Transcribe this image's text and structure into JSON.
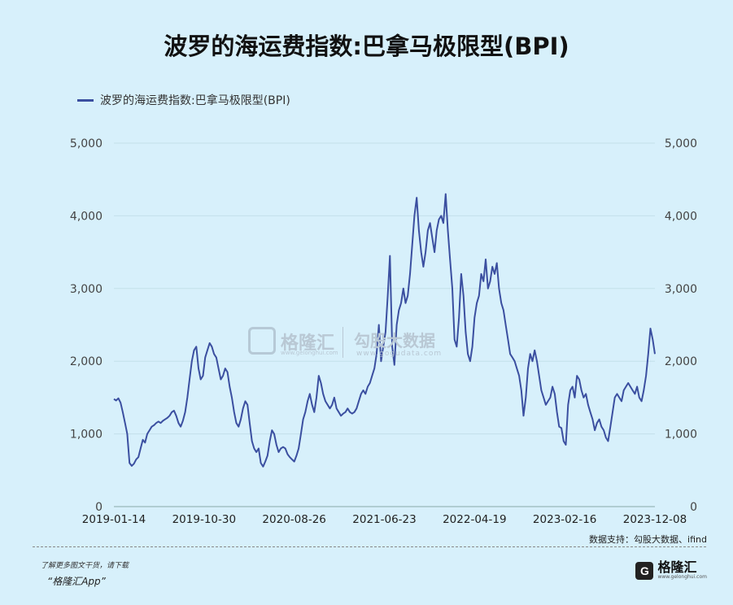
{
  "title": "波罗的海运费指数:巴拿马极限型(BPI)",
  "watermark": {
    "brand": "格隆汇",
    "brand_url": "www.gelonghui.com",
    "partner": "勾股大数据",
    "partner_url": "www.gogudata.com"
  },
  "footer": {
    "source": "数据支持：勾股大数据、ifind",
    "note": "了解更多图文干货，请下载",
    "app": "“格隆汇App”",
    "brand_logo": "G",
    "brand_name": "格隆汇",
    "brand_url": "www.gelonghui.com"
  },
  "colors": {
    "line": "#3b4fa0",
    "grid": "#c3dfea",
    "background": "#d7f0fb"
  },
  "chart_data": {
    "type": "line",
    "title": "波罗的海运费指数:巴拿马极限型(BPI)",
    "series": [
      {
        "name": "波罗的海运费指数:巴拿马极限型(BPI)",
        "values": [
          1480,
          1460,
          1490,
          1430,
          1300,
          1150,
          1000,
          600,
          560,
          590,
          650,
          680,
          800,
          920,
          880,
          1000,
          1050,
          1100,
          1120,
          1150,
          1170,
          1150,
          1180,
          1200,
          1220,
          1250,
          1300,
          1320,
          1250,
          1150,
          1100,
          1180,
          1300,
          1500,
          1750,
          2000,
          2150,
          2200,
          1900,
          1750,
          1800,
          2050,
          2150,
          2250,
          2200,
          2100,
          2050,
          1900,
          1750,
          1800,
          1900,
          1850,
          1650,
          1500,
          1300,
          1150,
          1100,
          1200,
          1350,
          1450,
          1400,
          1150,
          900,
          800,
          750,
          800,
          600,
          550,
          620,
          700,
          900,
          1050,
          1000,
          850,
          750,
          800,
          820,
          800,
          720,
          680,
          650,
          620,
          700,
          800,
          1000,
          1200,
          1300,
          1450,
          1550,
          1400,
          1300,
          1500,
          1800,
          1700,
          1550,
          1450,
          1400,
          1350,
          1400,
          1500,
          1350,
          1300,
          1250,
          1280,
          1300,
          1350,
          1300,
          1280,
          1300,
          1350,
          1450,
          1550,
          1600,
          1550,
          1650,
          1700,
          1800,
          1900,
          2100,
          2500,
          2000,
          2200,
          2400,
          2900,
          3450,
          2200,
          1950,
          2500,
          2700,
          2800,
          3000,
          2800,
          2900,
          3200,
          3600,
          4000,
          4250,
          3800,
          3500,
          3300,
          3500,
          3800,
          3900,
          3700,
          3500,
          3800,
          3950,
          4000,
          3900,
          4300,
          3800,
          3400,
          3000,
          2300,
          2200,
          2600,
          3200,
          2900,
          2400,
          2100,
          2000,
          2200,
          2600,
          2800,
          2900,
          3200,
          3100,
          3400,
          3000,
          3100,
          3300,
          3200,
          3350,
          3000,
          2800,
          2700,
          2500,
          2300,
          2100,
          2050,
          2000,
          1900,
          1800,
          1600,
          1250,
          1500,
          1900,
          2100,
          2000,
          2150,
          2000,
          1800,
          1600,
          1500,
          1400,
          1450,
          1500,
          1650,
          1550,
          1300,
          1100,
          1080,
          900,
          850,
          1400,
          1600,
          1650,
          1500,
          1800,
          1750,
          1600,
          1500,
          1550,
          1400,
          1300,
          1200,
          1050,
          1150,
          1200,
          1100,
          1050,
          950,
          900,
          1100,
          1300,
          1500,
          1550,
          1500,
          1450,
          1600,
          1650,
          1700,
          1650,
          1600,
          1550,
          1650,
          1500,
          1450,
          1600,
          1800,
          2100,
          2450,
          2300,
          2100
        ],
        "x_start": "2019-01-14",
        "x_end": "2023-12-08"
      }
    ],
    "x_tick_labels": [
      "2019-01-14",
      "2019-10-30",
      "2020-08-26",
      "2021-06-23",
      "2022-04-19",
      "2023-02-16",
      "2023-12-08"
    ],
    "y_ticks": [
      0,
      1000,
      2000,
      3000,
      4000,
      5000
    ],
    "y_tick_labels": [
      "0",
      "1,000",
      "2,000",
      "3,000",
      "4,000",
      "5,000"
    ],
    "ylim": [
      0,
      5000
    ],
    "grid": true,
    "legend_position": "top-left",
    "dual_y_axis": true
  }
}
